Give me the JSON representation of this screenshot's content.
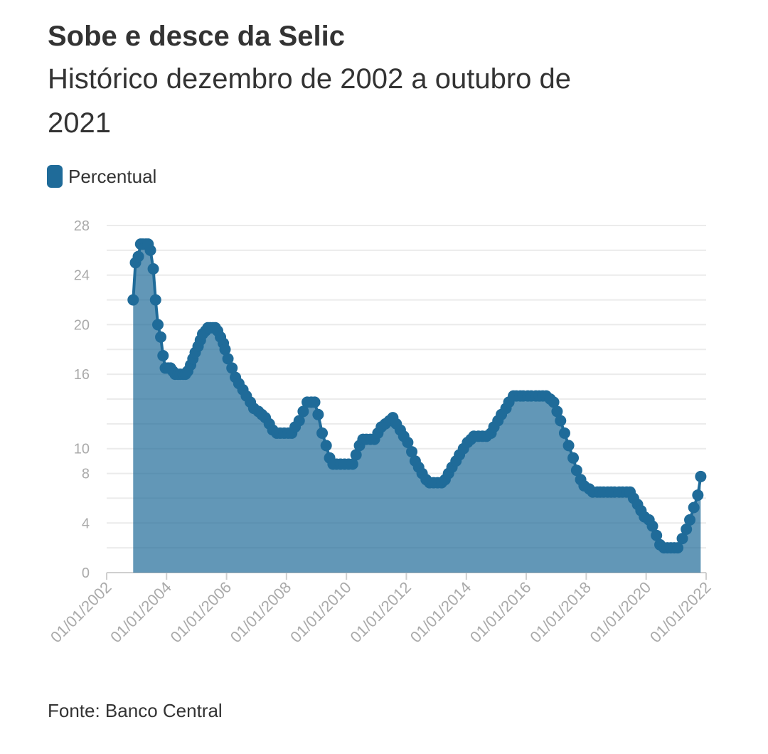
{
  "chart_data": {
    "type": "area",
    "title": "Sobe e desce da Selic",
    "subtitle_lines": [
      "Histórico dezembro de 2002 a outubro de",
      "2021"
    ],
    "source": "Fonte: Banco Central",
    "x": [
      "2002-11-20",
      "2002-12-18",
      "2003-01-22",
      "2003-02-19",
      "2003-03-19",
      "2003-04-23",
      "2003-05-21",
      "2003-06-18",
      "2003-07-23",
      "2003-08-20",
      "2003-09-17",
      "2003-10-22",
      "2003-11-19",
      "2003-12-17",
      "2004-01-21",
      "2004-02-18",
      "2004-03-17",
      "2004-04-14",
      "2004-05-19",
      "2004-06-16",
      "2004-07-21",
      "2004-08-18",
      "2004-09-15",
      "2004-10-20",
      "2004-11-17",
      "2004-12-15",
      "2005-01-19",
      "2005-02-16",
      "2005-03-16",
      "2005-04-20",
      "2005-05-18",
      "2005-06-15",
      "2005-07-20",
      "2005-08-17",
      "2005-09-14",
      "2005-10-19",
      "2005-11-23",
      "2005-12-14",
      "2006-01-18",
      "2006-03-08",
      "2006-04-19",
      "2006-05-31",
      "2006-07-19",
      "2006-08-30",
      "2006-10-18",
      "2006-11-29",
      "2007-01-24",
      "2007-03-07",
      "2007-04-18",
      "2007-06-06",
      "2007-07-18",
      "2007-09-05",
      "2007-10-17",
      "2007-12-05",
      "2008-01-23",
      "2008-03-05",
      "2008-04-16",
      "2008-06-04",
      "2008-07-23",
      "2008-09-10",
      "2008-10-29",
      "2008-12-10",
      "2009-01-21",
      "2009-03-11",
      "2009-04-29",
      "2009-06-10",
      "2009-07-22",
      "2009-09-02",
      "2009-10-21",
      "2009-12-09",
      "2010-01-27",
      "2010-03-17",
      "2010-04-28",
      "2010-06-09",
      "2010-07-21",
      "2010-09-01",
      "2010-10-20",
      "2010-12-08",
      "2011-01-19",
      "2011-03-02",
      "2011-04-20",
      "2011-06-08",
      "2011-07-20",
      "2011-08-31",
      "2011-10-19",
      "2011-11-30",
      "2012-01-18",
      "2012-03-07",
      "2012-04-18",
      "2012-05-30",
      "2012-07-11",
      "2012-08-29",
      "2012-10-10",
      "2012-11-28",
      "2013-01-16",
      "2013-03-06",
      "2013-04-17",
      "2013-05-29",
      "2013-07-10",
      "2013-08-28",
      "2013-10-09",
      "2013-11-27",
      "2014-01-15",
      "2014-02-26",
      "2014-04-02",
      "2014-05-28",
      "2014-07-16",
      "2014-09-03",
      "2014-10-29",
      "2014-12-03",
      "2015-01-21",
      "2015-03-04",
      "2015-04-29",
      "2015-06-03",
      "2015-07-29",
      "2015-09-02",
      "2015-10-21",
      "2015-11-25",
      "2016-01-20",
      "2016-03-02",
      "2016-04-27",
      "2016-06-08",
      "2016-07-20",
      "2016-08-31",
      "2016-10-19",
      "2016-11-30",
      "2017-01-11",
      "2017-02-22",
      "2017-04-12",
      "2017-05-31",
      "2017-07-26",
      "2017-09-06",
      "2017-10-25",
      "2017-12-06",
      "2018-02-07",
      "2018-03-21",
      "2018-05-16",
      "2018-06-20",
      "2018-08-01",
      "2018-09-19",
      "2018-10-31",
      "2018-12-12",
      "2019-02-06",
      "2019-03-20",
      "2019-05-08",
      "2019-06-19",
      "2019-07-31",
      "2019-09-18",
      "2019-10-30",
      "2019-12-11",
      "2020-02-05",
      "2020-03-18",
      "2020-05-06",
      "2020-06-17",
      "2020-08-05",
      "2020-09-16",
      "2020-10-28",
      "2020-12-09",
      "2021-01-20",
      "2021-03-17",
      "2021-05-05",
      "2021-06-16",
      "2021-08-04",
      "2021-09-22",
      "2021-10-27"
    ],
    "series": [
      {
        "name": "Percentual",
        "color": "#1f6b99",
        "values": [
          22,
          25,
          25.5,
          26.5,
          26.5,
          26.5,
          26.5,
          26,
          24.5,
          22,
          20,
          19,
          17.5,
          16.5,
          16.5,
          16.5,
          16.25,
          16,
          16,
          16,
          16,
          16,
          16.25,
          16.75,
          17.25,
          17.75,
          18.25,
          18.75,
          19.25,
          19.5,
          19.75,
          19.75,
          19.75,
          19.75,
          19.5,
          19,
          18.5,
          18,
          17.25,
          16.5,
          15.75,
          15.25,
          14.75,
          14.25,
          13.75,
          13.25,
          13,
          12.75,
          12.5,
          12,
          11.5,
          11.25,
          11.25,
          11.25,
          11.25,
          11.25,
          11.75,
          12.25,
          13,
          13.75,
          13.75,
          13.75,
          12.75,
          11.25,
          10.25,
          9.25,
          8.75,
          8.75,
          8.75,
          8.75,
          8.75,
          8.75,
          9.5,
          10.25,
          10.75,
          10.75,
          10.75,
          10.75,
          11.25,
          11.75,
          12,
          12.25,
          12.5,
          12,
          11.5,
          11,
          10.5,
          9.75,
          9,
          8.5,
          8,
          7.5,
          7.25,
          7.25,
          7.25,
          7.25,
          7.5,
          8,
          8.5,
          9,
          9.5,
          10,
          10.5,
          10.75,
          11,
          11,
          11,
          11,
          11.25,
          11.75,
          12.25,
          12.75,
          13.25,
          13.75,
          14.25,
          14.25,
          14.25,
          14.25,
          14.25,
          14.25,
          14.25,
          14.25,
          14.25,
          14.25,
          14,
          13.75,
          13,
          12.25,
          11.25,
          10.25,
          9.25,
          8.25,
          7.5,
          7,
          6.75,
          6.5,
          6.5,
          6.5,
          6.5,
          6.5,
          6.5,
          6.5,
          6.5,
          6.5,
          6.5,
          6.5,
          6,
          5.5,
          5,
          4.5,
          4.25,
          3.75,
          3,
          2.25,
          2,
          2,
          2,
          2,
          2,
          2.75,
          3.5,
          4.25,
          5.25,
          6.25,
          7.75
        ]
      }
    ],
    "xlim": [
      "2002-01-01",
      "2022-01-01"
    ],
    "xticks": [
      {
        "value": "2002-01-01",
        "label": "01/01/2002"
      },
      {
        "value": "2004-01-01",
        "label": "01/01/2004"
      },
      {
        "value": "2006-01-01",
        "label": "01/01/2006"
      },
      {
        "value": "2008-01-01",
        "label": "01/01/2008"
      },
      {
        "value": "2010-01-01",
        "label": "01/01/2010"
      },
      {
        "value": "2012-01-01",
        "label": "01/01/2012"
      },
      {
        "value": "2014-01-01",
        "label": "01/01/2014"
      },
      {
        "value": "2016-01-01",
        "label": "01/01/2016"
      },
      {
        "value": "2018-01-01",
        "label": "01/01/2018"
      },
      {
        "value": "2020-01-01",
        "label": "01/01/2020"
      },
      {
        "value": "2022-01-01",
        "label": "01/01/2022"
      }
    ],
    "ylim": [
      0,
      28
    ],
    "yticks": [
      0,
      4,
      8,
      10,
      16,
      20,
      24,
      28
    ],
    "y_minor_ticks": [
      2,
      6,
      12,
      14,
      18,
      22,
      26
    ],
    "grid": true
  }
}
